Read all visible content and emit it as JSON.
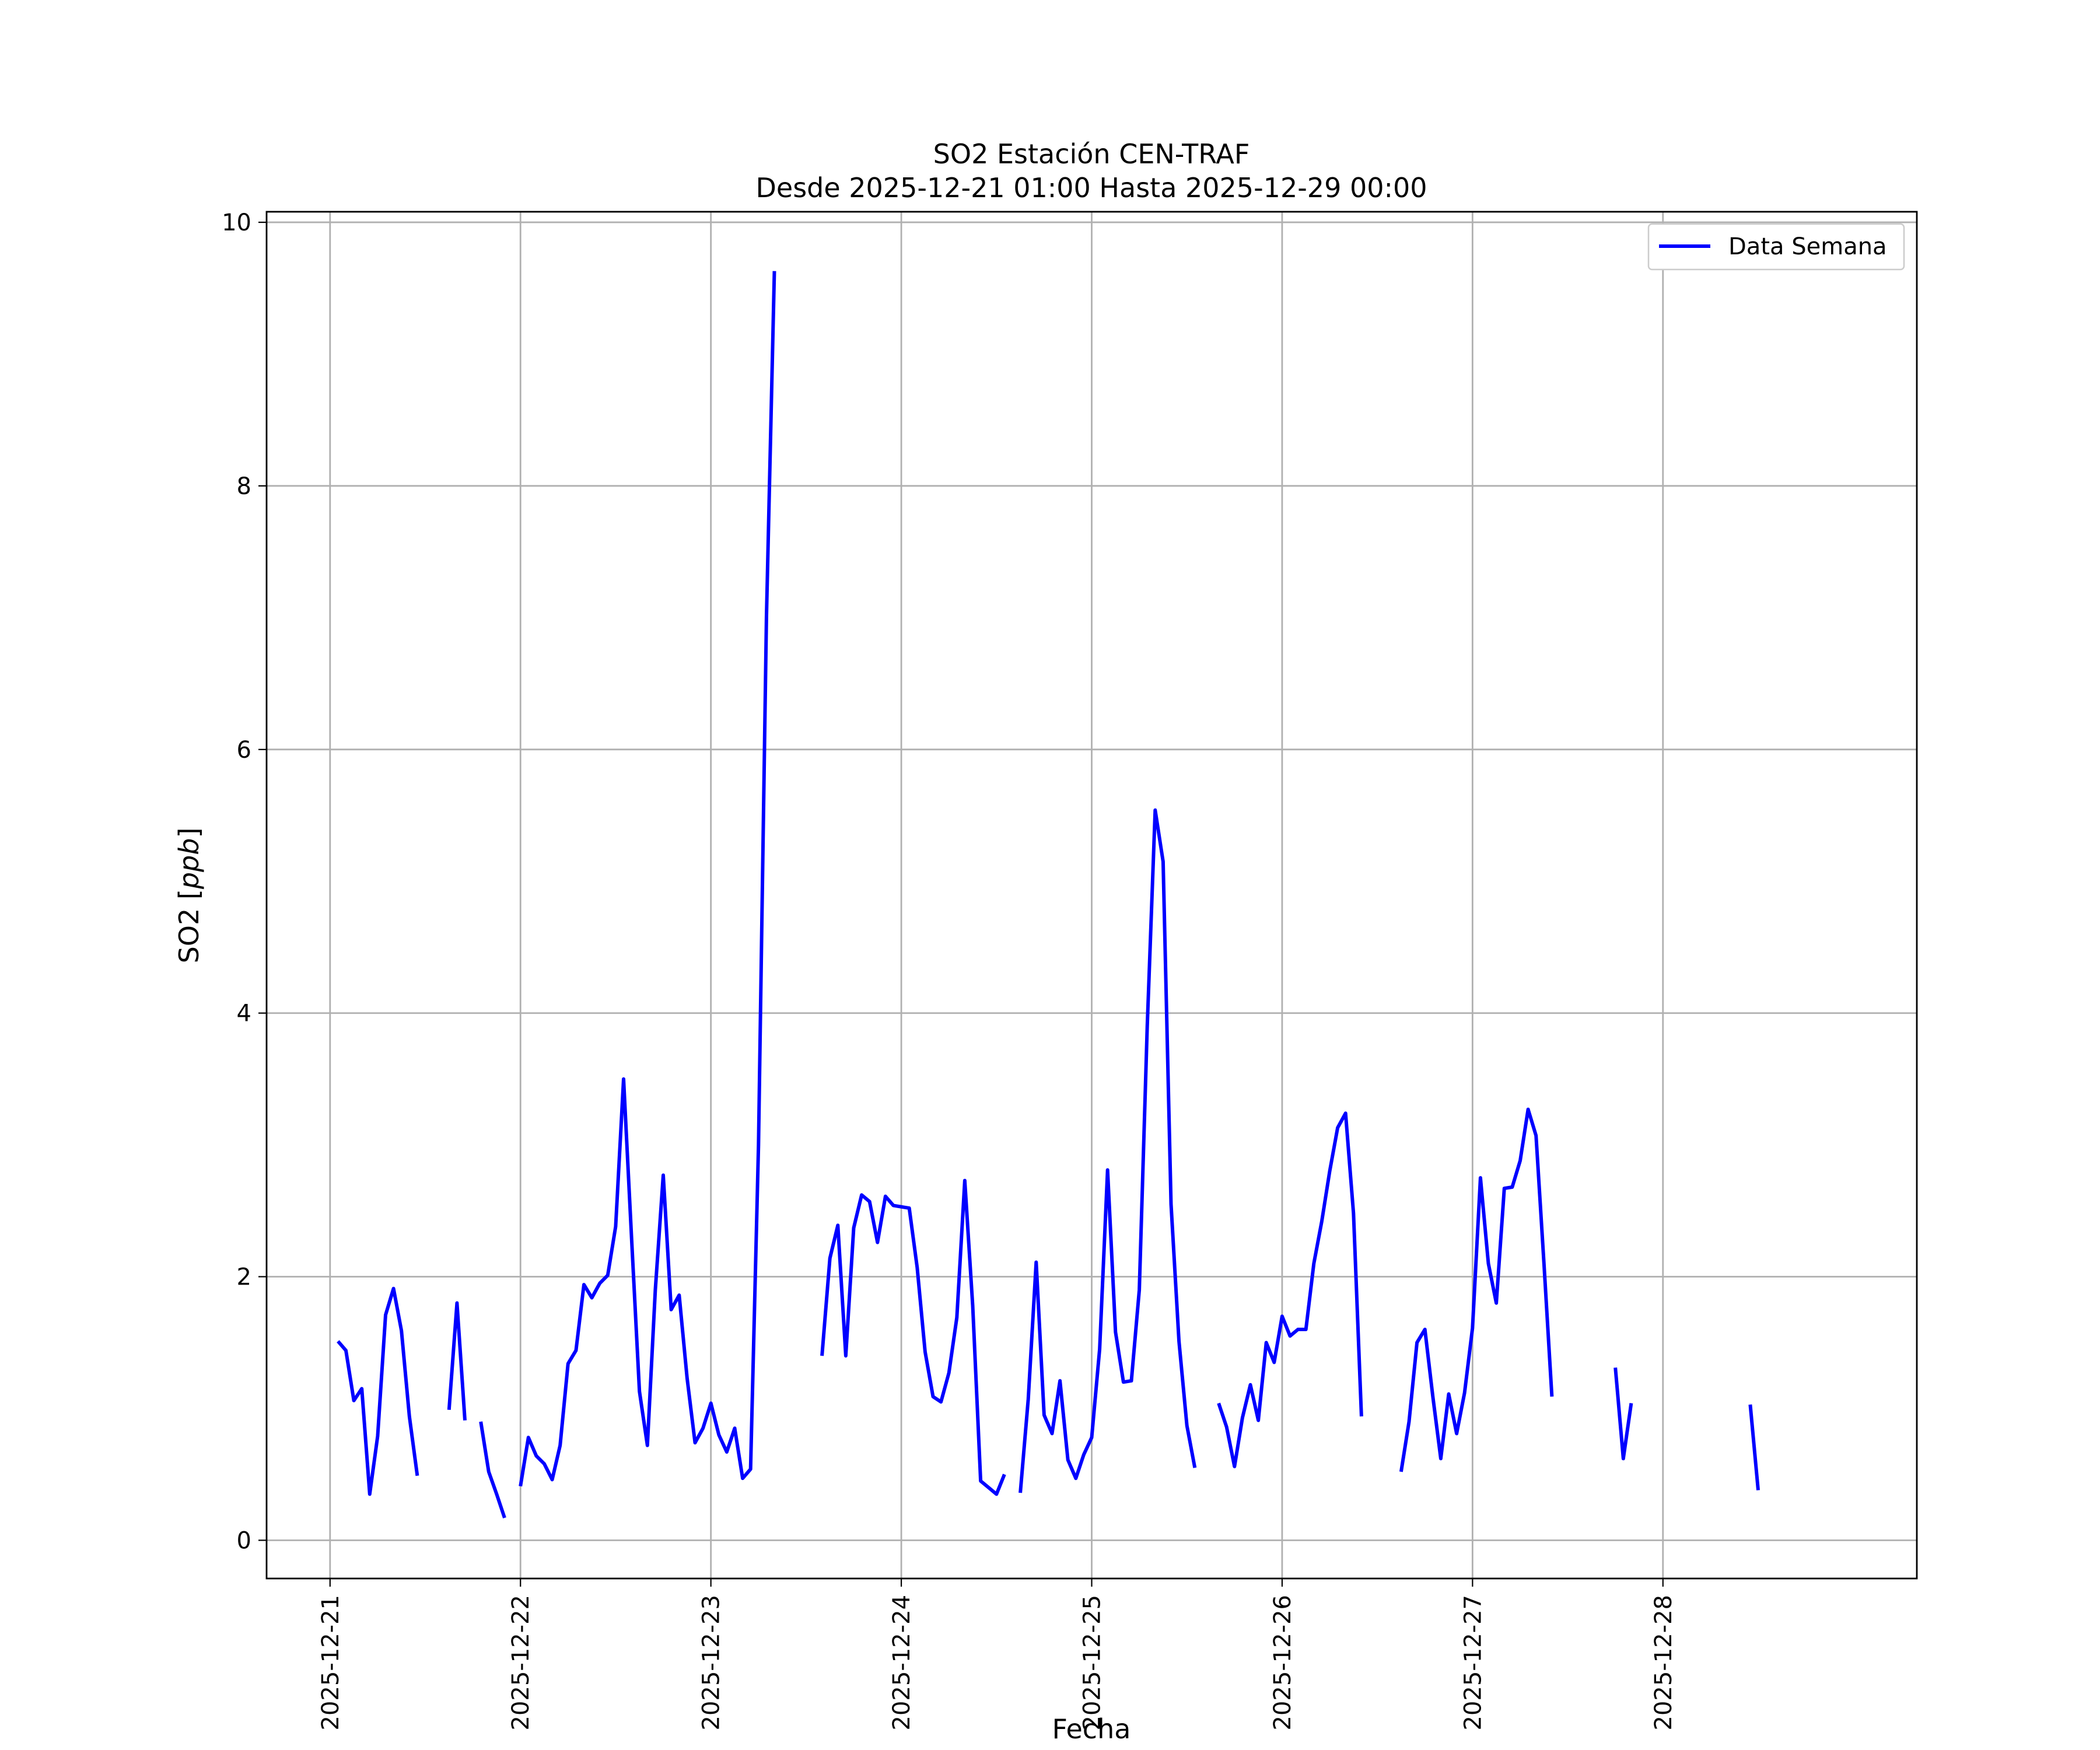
{
  "chart_data": {
    "type": "line",
    "title": "SO2 Estación CEN-TRAF",
    "subtitle": "Desde 2025-12-21 01:00 Hasta 2025-12-29 00:00",
    "xlabel": "Fecha",
    "ylabel": "SO2 [ppb]",
    "ylabel_prefix": "SO2 [",
    "ylabel_unit": "ppb",
    "ylabel_suffix": "]",
    "xlim": [
      "2025-12-20 16:00",
      "2025-12-29 08:00"
    ],
    "ylim": [
      -0.29,
      10.08
    ],
    "grid": true,
    "legend_placement": "top-right",
    "x_ticks": [
      "2025-12-21",
      "2025-12-22",
      "2025-12-23",
      "2025-12-24",
      "2025-12-25",
      "2025-12-26",
      "2025-12-27",
      "2025-12-28"
    ],
    "y_ticks": [
      0,
      2,
      4,
      6,
      8,
      10
    ],
    "series": [
      {
        "name": "Data Semana",
        "color": "#0000ff",
        "segments": [
          [
            [
              "2025-12-21 01:00",
              1.51
            ],
            [
              "2025-12-21 02:00",
              1.44
            ],
            [
              "2025-12-21 03:00",
              1.06
            ],
            [
              "2025-12-21 04:00",
              1.15
            ],
            [
              "2025-12-21 05:00",
              0.35
            ],
            [
              "2025-12-21 06:00",
              0.79
            ],
            [
              "2025-12-21 07:00",
              1.71
            ],
            [
              "2025-12-21 08:00",
              1.91
            ],
            [
              "2025-12-21 09:00",
              1.59
            ],
            [
              "2025-12-21 10:00",
              0.94
            ],
            [
              "2025-12-21 11:00",
              0.49
            ]
          ],
          [
            [
              "2025-12-21 15:00",
              0.99
            ],
            [
              "2025-12-21 16:00",
              1.8
            ],
            [
              "2025-12-21 17:00",
              0.91
            ]
          ],
          [
            [
              "2025-12-21 19:00",
              0.9
            ],
            [
              "2025-12-21 20:00",
              0.52
            ],
            [
              "2025-12-21 21:00",
              0.35
            ],
            [
              "2025-12-21 22:00",
              0.17
            ]
          ],
          [
            [
              "2025-12-22 00:00",
              0.41
            ],
            [
              "2025-12-22 01:00",
              0.78
            ],
            [
              "2025-12-22 02:00",
              0.64
            ],
            [
              "2025-12-22 03:00",
              0.58
            ],
            [
              "2025-12-22 04:00",
              0.46
            ],
            [
              "2025-12-22 05:00",
              0.72
            ],
            [
              "2025-12-22 06:00",
              1.34
            ],
            [
              "2025-12-22 07:00",
              1.44
            ],
            [
              "2025-12-22 08:00",
              1.94
            ],
            [
              "2025-12-22 09:00",
              1.84
            ],
            [
              "2025-12-22 10:00",
              1.95
            ],
            [
              "2025-12-22 11:00",
              2.01
            ],
            [
              "2025-12-22 12:00",
              2.38
            ],
            [
              "2025-12-22 13:00",
              3.5
            ],
            [
              "2025-12-22 14:00",
              2.3
            ],
            [
              "2025-12-22 15:00",
              1.13
            ],
            [
              "2025-12-22 16:00",
              0.72
            ],
            [
              "2025-12-22 17:00",
              1.9
            ],
            [
              "2025-12-22 18:00",
              2.77
            ],
            [
              "2025-12-22 19:00",
              1.75
            ],
            [
              "2025-12-22 20:00",
              1.86
            ],
            [
              "2025-12-22 21:00",
              1.23
            ],
            [
              "2025-12-22 22:00",
              0.74
            ],
            [
              "2025-12-22 23:00",
              0.85
            ],
            [
              "2025-12-23 00:00",
              1.04
            ],
            [
              "2025-12-23 01:00",
              0.8
            ],
            [
              "2025-12-23 02:00",
              0.67
            ],
            [
              "2025-12-23 03:00",
              0.85
            ],
            [
              "2025-12-23 04:00",
              0.47
            ],
            [
              "2025-12-23 05:00",
              0.54
            ],
            [
              "2025-12-23 06:00",
              3.0
            ],
            [
              "2025-12-23 07:00",
              7.0
            ],
            [
              "2025-12-23 08:00",
              9.63
            ]
          ],
          [
            [
              "2025-12-23 14:00",
              1.4
            ],
            [
              "2025-12-23 15:00",
              2.14
            ],
            [
              "2025-12-23 16:00",
              2.39
            ],
            [
              "2025-12-23 17:00",
              1.4
            ],
            [
              "2025-12-23 18:00",
              2.37
            ],
            [
              "2025-12-23 19:00",
              2.62
            ],
            [
              "2025-12-23 20:00",
              2.57
            ],
            [
              "2025-12-23 21:00",
              2.26
            ],
            [
              "2025-12-23 22:00",
              2.61
            ],
            [
              "2025-12-23 23:00",
              2.54
            ],
            [
              "2025-12-24 00:00",
              2.53
            ],
            [
              "2025-12-24 01:00",
              2.52
            ],
            [
              "2025-12-24 02:00",
              2.07
            ],
            [
              "2025-12-24 03:00",
              1.43
            ],
            [
              "2025-12-24 04:00",
              1.09
            ],
            [
              "2025-12-24 05:00",
              1.05
            ],
            [
              "2025-12-24 06:00",
              1.27
            ],
            [
              "2025-12-24 07:00",
              1.69
            ],
            [
              "2025-12-24 08:00",
              2.73
            ],
            [
              "2025-12-24 09:00",
              1.78
            ],
            [
              "2025-12-24 10:00",
              0.45
            ],
            [
              "2025-12-24 11:00",
              0.4
            ],
            [
              "2025-12-24 12:00",
              0.35
            ],
            [
              "2025-12-24 13:00",
              0.5
            ]
          ],
          [
            [
              "2025-12-24 15:00",
              0.36
            ],
            [
              "2025-12-24 16:00",
              1.07
            ],
            [
              "2025-12-24 17:00",
              2.11
            ],
            [
              "2025-12-24 18:00",
              0.95
            ],
            [
              "2025-12-24 19:00",
              0.81
            ],
            [
              "2025-12-24 20:00",
              1.21
            ],
            [
              "2025-12-24 21:00",
              0.61
            ],
            [
              "2025-12-24 22:00",
              0.47
            ],
            [
              "2025-12-24 23:00",
              0.65
            ],
            [
              "2025-12-25 00:00",
              0.78
            ],
            [
              "2025-12-25 01:00",
              1.45
            ],
            [
              "2025-12-25 02:00",
              2.81
            ],
            [
              "2025-12-25 03:00",
              1.58
            ],
            [
              "2025-12-25 04:00",
              1.2
            ],
            [
              "2025-12-25 05:00",
              1.21
            ],
            [
              "2025-12-25 06:00",
              1.9
            ],
            [
              "2025-12-25 07:00",
              3.9
            ],
            [
              "2025-12-25 08:00",
              5.54
            ],
            [
              "2025-12-25 09:00",
              5.15
            ],
            [
              "2025-12-25 10:00",
              2.55
            ],
            [
              "2025-12-25 11:00",
              1.51
            ],
            [
              "2025-12-25 12:00",
              0.87
            ],
            [
              "2025-12-25 13:00",
              0.55
            ]
          ],
          [
            [
              "2025-12-25 16:00",
              1.04
            ],
            [
              "2025-12-25 17:00",
              0.86
            ],
            [
              "2025-12-25 18:00",
              0.56
            ],
            [
              "2025-12-25 19:00",
              0.93
            ],
            [
              "2025-12-25 20:00",
              1.18
            ],
            [
              "2025-12-25 21:00",
              0.91
            ],
            [
              "2025-12-25 22:00",
              1.5
            ],
            [
              "2025-12-25 23:00",
              1.35
            ],
            [
              "2025-12-26 00:00",
              1.7
            ],
            [
              "2025-12-26 01:00",
              1.55
            ],
            [
              "2025-12-26 02:00",
              1.6
            ],
            [
              "2025-12-26 03:00",
              1.6
            ],
            [
              "2025-12-26 04:00",
              2.1
            ],
            [
              "2025-12-26 05:00",
              2.42
            ],
            [
              "2025-12-26 06:00",
              2.8
            ],
            [
              "2025-12-26 07:00",
              3.13
            ],
            [
              "2025-12-26 08:00",
              3.24
            ],
            [
              "2025-12-26 09:00",
              2.48
            ],
            [
              "2025-12-26 10:00",
              0.94
            ]
          ],
          [
            [
              "2025-12-26 15:00",
              0.52
            ],
            [
              "2025-12-26 16:00",
              0.9
            ],
            [
              "2025-12-26 17:00",
              1.5
            ],
            [
              "2025-12-26 18:00",
              1.6
            ],
            [
              "2025-12-26 19:00",
              1.09
            ],
            [
              "2025-12-26 20:00",
              0.62
            ],
            [
              "2025-12-26 21:00",
              1.11
            ],
            [
              "2025-12-26 22:00",
              0.81
            ],
            [
              "2025-12-26 23:00",
              1.12
            ],
            [
              "2025-12-27 00:00",
              1.61
            ],
            [
              "2025-12-27 01:00",
              2.75
            ],
            [
              "2025-12-27 02:00",
              2.1
            ],
            [
              "2025-12-27 03:00",
              1.8
            ],
            [
              "2025-12-27 04:00",
              2.67
            ],
            [
              "2025-12-27 05:00",
              2.68
            ],
            [
              "2025-12-27 06:00",
              2.88
            ],
            [
              "2025-12-27 07:00",
              3.27
            ],
            [
              "2025-12-27 08:00",
              3.07
            ],
            [
              "2025-12-27 09:00",
              2.1
            ],
            [
              "2025-12-27 10:00",
              1.09
            ]
          ],
          [
            [
              "2025-12-27 18:00",
              1.31
            ],
            [
              "2025-12-27 19:00",
              0.62
            ],
            [
              "2025-12-27 20:00",
              1.04
            ]
          ],
          [
            [
              "2025-12-28 11:00",
              1.03
            ],
            [
              "2025-12-28 12:00",
              0.38
            ]
          ]
        ]
      }
    ]
  }
}
